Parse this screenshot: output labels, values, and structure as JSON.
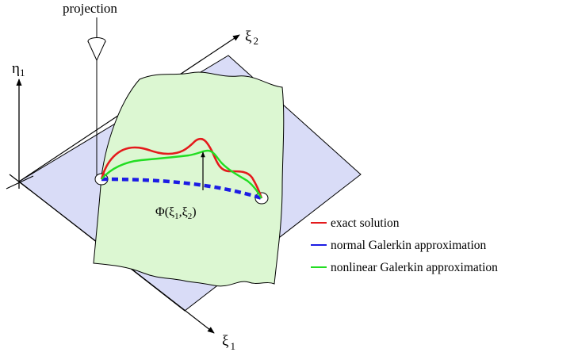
{
  "labels": {
    "projection": "projection",
    "eta": "η",
    "eta_sub": "1",
    "xi2": "ξ",
    "xi2_sub": "2",
    "xi1": "ξ",
    "xi1_sub": "1",
    "phi_open": "Φ(ξ",
    "phi_sub1": "1",
    "phi_mid": ",ξ",
    "phi_sub2": "2",
    "phi_close": ")"
  },
  "legend": [
    {
      "label": "exact solution",
      "color": "#e41a1c"
    },
    {
      "label": "normal Galerkin approximation",
      "color": "#1c1ce4"
    },
    {
      "label": "nonlinear Galerkin approximation",
      "color": "#22dd22"
    }
  ],
  "colors": {
    "plane": "#d9dcf7",
    "surface": "#dcf7d2",
    "exact": "#e41a1c",
    "normal": "#1c1ce4",
    "nonlinear": "#22dd22",
    "ink": "#000000"
  }
}
